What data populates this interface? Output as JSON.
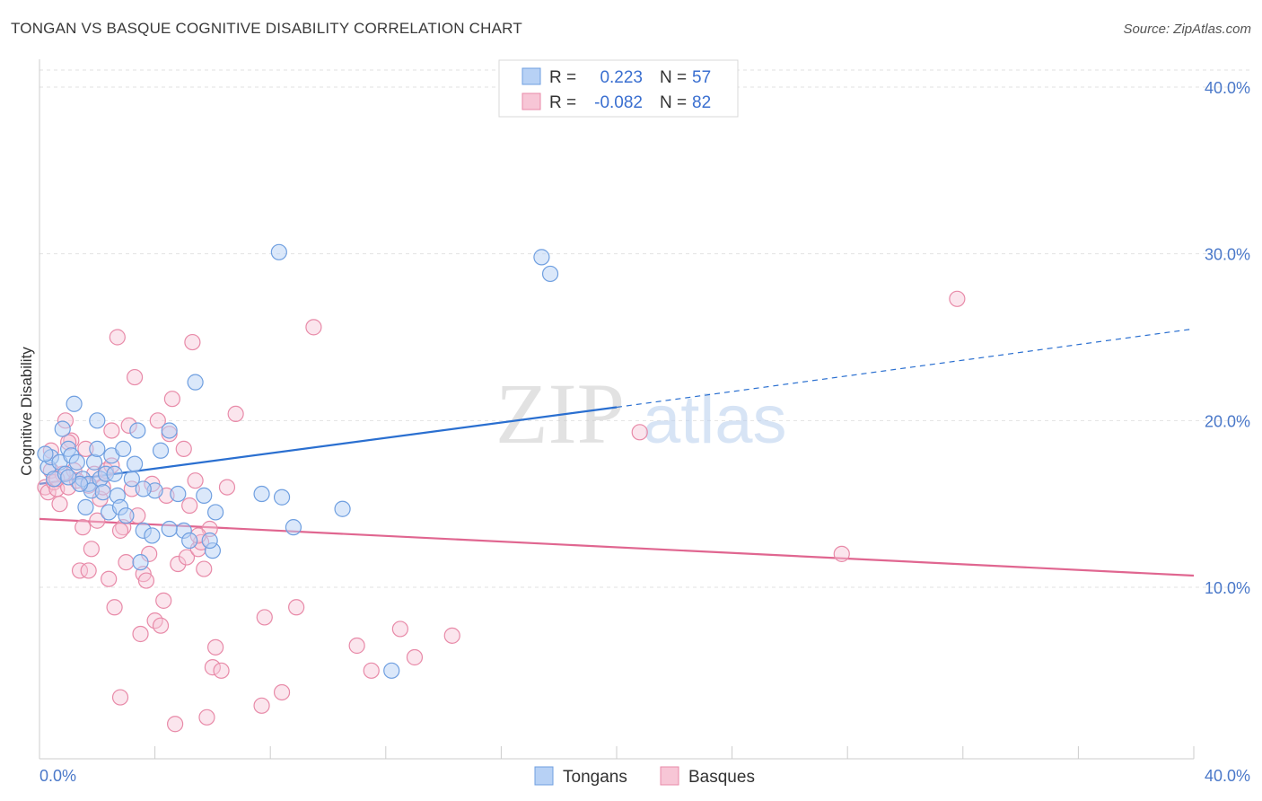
{
  "title": "TONGAN VS BASQUE COGNITIVE DISABILITY CORRELATION CHART",
  "source": "Source: ZipAtlas.com",
  "watermark": {
    "zip": "ZIP",
    "atlas": "atlas"
  },
  "colors": {
    "tongans_fill": "#b7d1f5",
    "tongans_stroke": "#6f9fe0",
    "tongans_line": "#2a6fd0",
    "basques_fill": "#f7c6d6",
    "basques_stroke": "#e88aa8",
    "basques_line": "#e06690",
    "tick_label": "#4a78c9",
    "grid": "#e2e2e2"
  },
  "legend": {
    "rows": [
      {
        "r_label": "R =",
        "r_value": "0.223",
        "n_label": "N =",
        "n_value": "57"
      },
      {
        "r_label": "R =",
        "r_value": "-0.082",
        "n_label": "N =",
        "n_value": "82"
      }
    ]
  },
  "chart_data": {
    "type": "scatter",
    "title": "TONGAN VS BASQUE COGNITIVE DISABILITY CORRELATION CHART",
    "xlabel": "",
    "ylabel": "Cognitive Disability",
    "xlim": [
      0,
      40
    ],
    "ylim": [
      0,
      40
    ],
    "x_tick_labels": [
      "0.0%",
      "40.0%"
    ],
    "y_ticks": [
      10,
      20,
      30,
      40
    ],
    "y_tick_labels": [
      "10.0%",
      "20.0%",
      "30.0%",
      "40.0%"
    ],
    "grid": true,
    "legend_position": "top-center",
    "series": [
      {
        "name": "Tongans",
        "r": 0.223,
        "n": 57,
        "trend": {
          "x0": 0,
          "y0": 16.2,
          "x1": 20,
          "y1": 20.8,
          "dashed_to_x": 40,
          "dashed_to_y": 25.5
        },
        "points": [
          [
            0.3,
            17.2
          ],
          [
            0.4,
            17.8
          ],
          [
            0.5,
            16.5
          ],
          [
            0.7,
            17.5
          ],
          [
            0.8,
            19.5
          ],
          [
            0.9,
            16.8
          ],
          [
            1.0,
            18.3
          ],
          [
            1.1,
            17.9
          ],
          [
            1.2,
            21.0
          ],
          [
            1.3,
            17.5
          ],
          [
            1.5,
            16.5
          ],
          [
            1.6,
            14.8
          ],
          [
            1.7,
            16.2
          ],
          [
            1.8,
            15.8
          ],
          [
            1.9,
            17.5
          ],
          [
            2.0,
            18.3
          ],
          [
            2.1,
            16.5
          ],
          [
            2.2,
            15.7
          ],
          [
            2.3,
            16.8
          ],
          [
            2.4,
            14.5
          ],
          [
            2.5,
            17.9
          ],
          [
            2.6,
            16.8
          ],
          [
            2.7,
            15.5
          ],
          [
            2.8,
            14.8
          ],
          [
            2.9,
            18.3
          ],
          [
            3.0,
            14.3
          ],
          [
            3.2,
            16.5
          ],
          [
            3.3,
            17.4
          ],
          [
            3.4,
            19.4
          ],
          [
            3.5,
            11.5
          ],
          [
            3.6,
            13.4
          ],
          [
            3.9,
            13.1
          ],
          [
            4.0,
            15.8
          ],
          [
            4.2,
            18.2
          ],
          [
            4.5,
            19.4
          ],
          [
            4.8,
            15.6
          ],
          [
            5.0,
            13.4
          ],
          [
            5.2,
            12.8
          ],
          [
            5.4,
            22.3
          ],
          [
            5.7,
            15.5
          ],
          [
            6.0,
            12.2
          ],
          [
            6.1,
            14.5
          ],
          [
            7.7,
            15.6
          ],
          [
            8.3,
            30.1
          ],
          [
            8.4,
            15.4
          ],
          [
            8.8,
            13.6
          ],
          [
            10.5,
            14.7
          ],
          [
            12.2,
            5.0
          ],
          [
            17.4,
            29.8
          ],
          [
            17.7,
            28.8
          ],
          [
            0.2,
            18.0
          ],
          [
            4.5,
            13.5
          ],
          [
            2.0,
            20.0
          ],
          [
            5.9,
            12.8
          ],
          [
            3.6,
            15.9
          ],
          [
            1.4,
            16.2
          ],
          [
            1.0,
            16.6
          ]
        ]
      },
      {
        "name": "Basques",
        "r": -0.082,
        "n": 82,
        "trend": {
          "x0": 0,
          "y0": 14.1,
          "x1": 40,
          "y1": 10.7
        },
        "points": [
          [
            0.2,
            16.0
          ],
          [
            0.3,
            15.7
          ],
          [
            0.4,
            17.0
          ],
          [
            0.5,
            16.3
          ],
          [
            0.6,
            15.9
          ],
          [
            0.7,
            15.0
          ],
          [
            0.8,
            16.8
          ],
          [
            0.9,
            20.0
          ],
          [
            1.0,
            16.0
          ],
          [
            1.1,
            18.8
          ],
          [
            1.2,
            17.0
          ],
          [
            1.3,
            16.4
          ],
          [
            1.4,
            11.0
          ],
          [
            1.5,
            13.6
          ],
          [
            1.6,
            18.3
          ],
          [
            1.7,
            11.0
          ],
          [
            1.8,
            12.3
          ],
          [
            1.9,
            16.8
          ],
          [
            2.0,
            14.0
          ],
          [
            2.1,
            15.3
          ],
          [
            2.2,
            16.0
          ],
          [
            2.3,
            17.0
          ],
          [
            2.4,
            10.5
          ],
          [
            2.5,
            19.4
          ],
          [
            2.6,
            8.8
          ],
          [
            2.7,
            25.0
          ],
          [
            2.8,
            3.4
          ],
          [
            2.9,
            13.6
          ],
          [
            3.0,
            11.5
          ],
          [
            3.1,
            19.7
          ],
          [
            3.2,
            15.9
          ],
          [
            3.3,
            22.6
          ],
          [
            3.4,
            14.3
          ],
          [
            3.5,
            7.2
          ],
          [
            3.6,
            10.8
          ],
          [
            3.7,
            10.4
          ],
          [
            3.8,
            12.0
          ],
          [
            4.0,
            8.0
          ],
          [
            4.1,
            20.0
          ],
          [
            4.2,
            7.7
          ],
          [
            4.3,
            9.2
          ],
          [
            4.4,
            15.5
          ],
          [
            4.5,
            19.2
          ],
          [
            4.6,
            21.3
          ],
          [
            4.7,
            1.8
          ],
          [
            4.8,
            11.4
          ],
          [
            5.0,
            18.3
          ],
          [
            5.1,
            11.8
          ],
          [
            5.2,
            14.9
          ],
          [
            5.3,
            24.7
          ],
          [
            5.4,
            16.4
          ],
          [
            5.5,
            12.3
          ],
          [
            5.6,
            12.7
          ],
          [
            5.7,
            11.1
          ],
          [
            5.8,
            2.2
          ],
          [
            5.9,
            13.5
          ],
          [
            6.0,
            5.2
          ],
          [
            6.1,
            6.4
          ],
          [
            6.3,
            5.0
          ],
          [
            6.5,
            16.0
          ],
          [
            6.8,
            20.4
          ],
          [
            7.7,
            2.9
          ],
          [
            7.8,
            8.2
          ],
          [
            8.4,
            3.7
          ],
          [
            8.9,
            8.8
          ],
          [
            9.5,
            25.6
          ],
          [
            11.0,
            6.5
          ],
          [
            11.5,
            5.0
          ],
          [
            12.5,
            7.5
          ],
          [
            13.0,
            5.8
          ],
          [
            14.3,
            7.1
          ],
          [
            20.8,
            19.3
          ],
          [
            27.8,
            12.0
          ],
          [
            31.8,
            27.3
          ],
          [
            0.4,
            18.2
          ],
          [
            1.0,
            18.7
          ],
          [
            2.8,
            13.4
          ],
          [
            3.9,
            16.2
          ],
          [
            5.5,
            13.1
          ],
          [
            1.7,
            16.1
          ],
          [
            0.6,
            16.5
          ],
          [
            2.5,
            17.3
          ]
        ]
      }
    ]
  },
  "bottom_legend": {
    "tongans": "Tongans",
    "basques": "Basques"
  },
  "axis": {
    "x_min_label": "0.0%",
    "x_max_label": "40.0%",
    "ylabel": "Cognitive Disability"
  }
}
